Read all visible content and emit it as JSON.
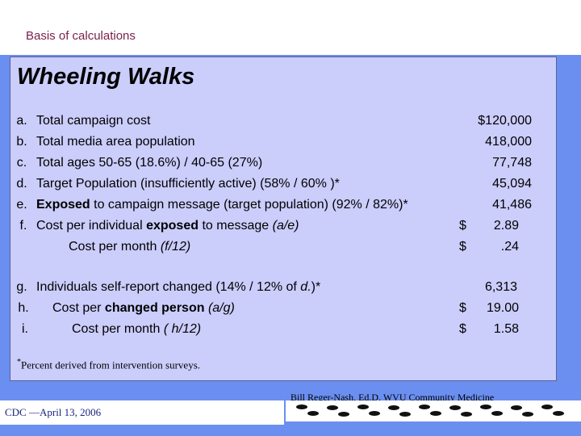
{
  "header": {
    "caption": "Basis of calculations"
  },
  "panel": {
    "title": "Wheeling Walks",
    "rows": [
      {
        "letter": "a.",
        "parts": [
          "Total campaign cost"
        ],
        "value": "$120,000"
      },
      {
        "letter": "b.",
        "parts": [
          "Total media area population"
        ],
        "value": "418,000"
      },
      {
        "letter": "c.",
        "parts": [
          "Total ages 50-65 (18.6%)  /  40-65 (27%)"
        ],
        "value": "77,748"
      },
      {
        "letter": "d.",
        "parts": [
          "Target Population (insufficiently active)  (58% / 60% )*"
        ],
        "value": "45,094"
      },
      {
        "letter": "e.",
        "parts": [
          "Exposed",
          " to campaign message (target population) (92% / 82%)*"
        ],
        "value": "41,486"
      },
      {
        "letter": "f.",
        "parts": [
          "Cost per individual ",
          "exposed",
          " to message   ",
          "(a/e)"
        ],
        "dollar": "$",
        "value": "2.89"
      },
      {
        "letter": "",
        "parts": [
          "Cost per month   ",
          "(f/12)"
        ],
        "dollar": "$",
        "value": ".24"
      },
      {
        "letter": "g.",
        "parts": [
          "Individuals self-report changed (14% /  12% of ",
          "d.",
          ")*"
        ],
        "value": "6,313"
      },
      {
        "letter": "h.",
        "parts": [
          "Cost per ",
          "changed person",
          "   ",
          "(a/g)"
        ],
        "dollar": "$",
        "value": "19.00"
      },
      {
        "letter": "i.",
        "parts": [
          "Cost per month     ",
          "( h/12)"
        ],
        "dollar": "$",
        "value": "1.58"
      }
    ],
    "footnote_mark": "*",
    "footnote": "Percent derived from intervention surveys."
  },
  "footer": {
    "author": "Bill Reger-Nash, Ed.D.  WVU Community Medicine",
    "date": "CDC —April 13, 2006"
  },
  "colors": {
    "background": "#6b8ff0",
    "panel": "#cbcdfb",
    "caption": "#7a1f4a",
    "date": "#1a237e"
  }
}
